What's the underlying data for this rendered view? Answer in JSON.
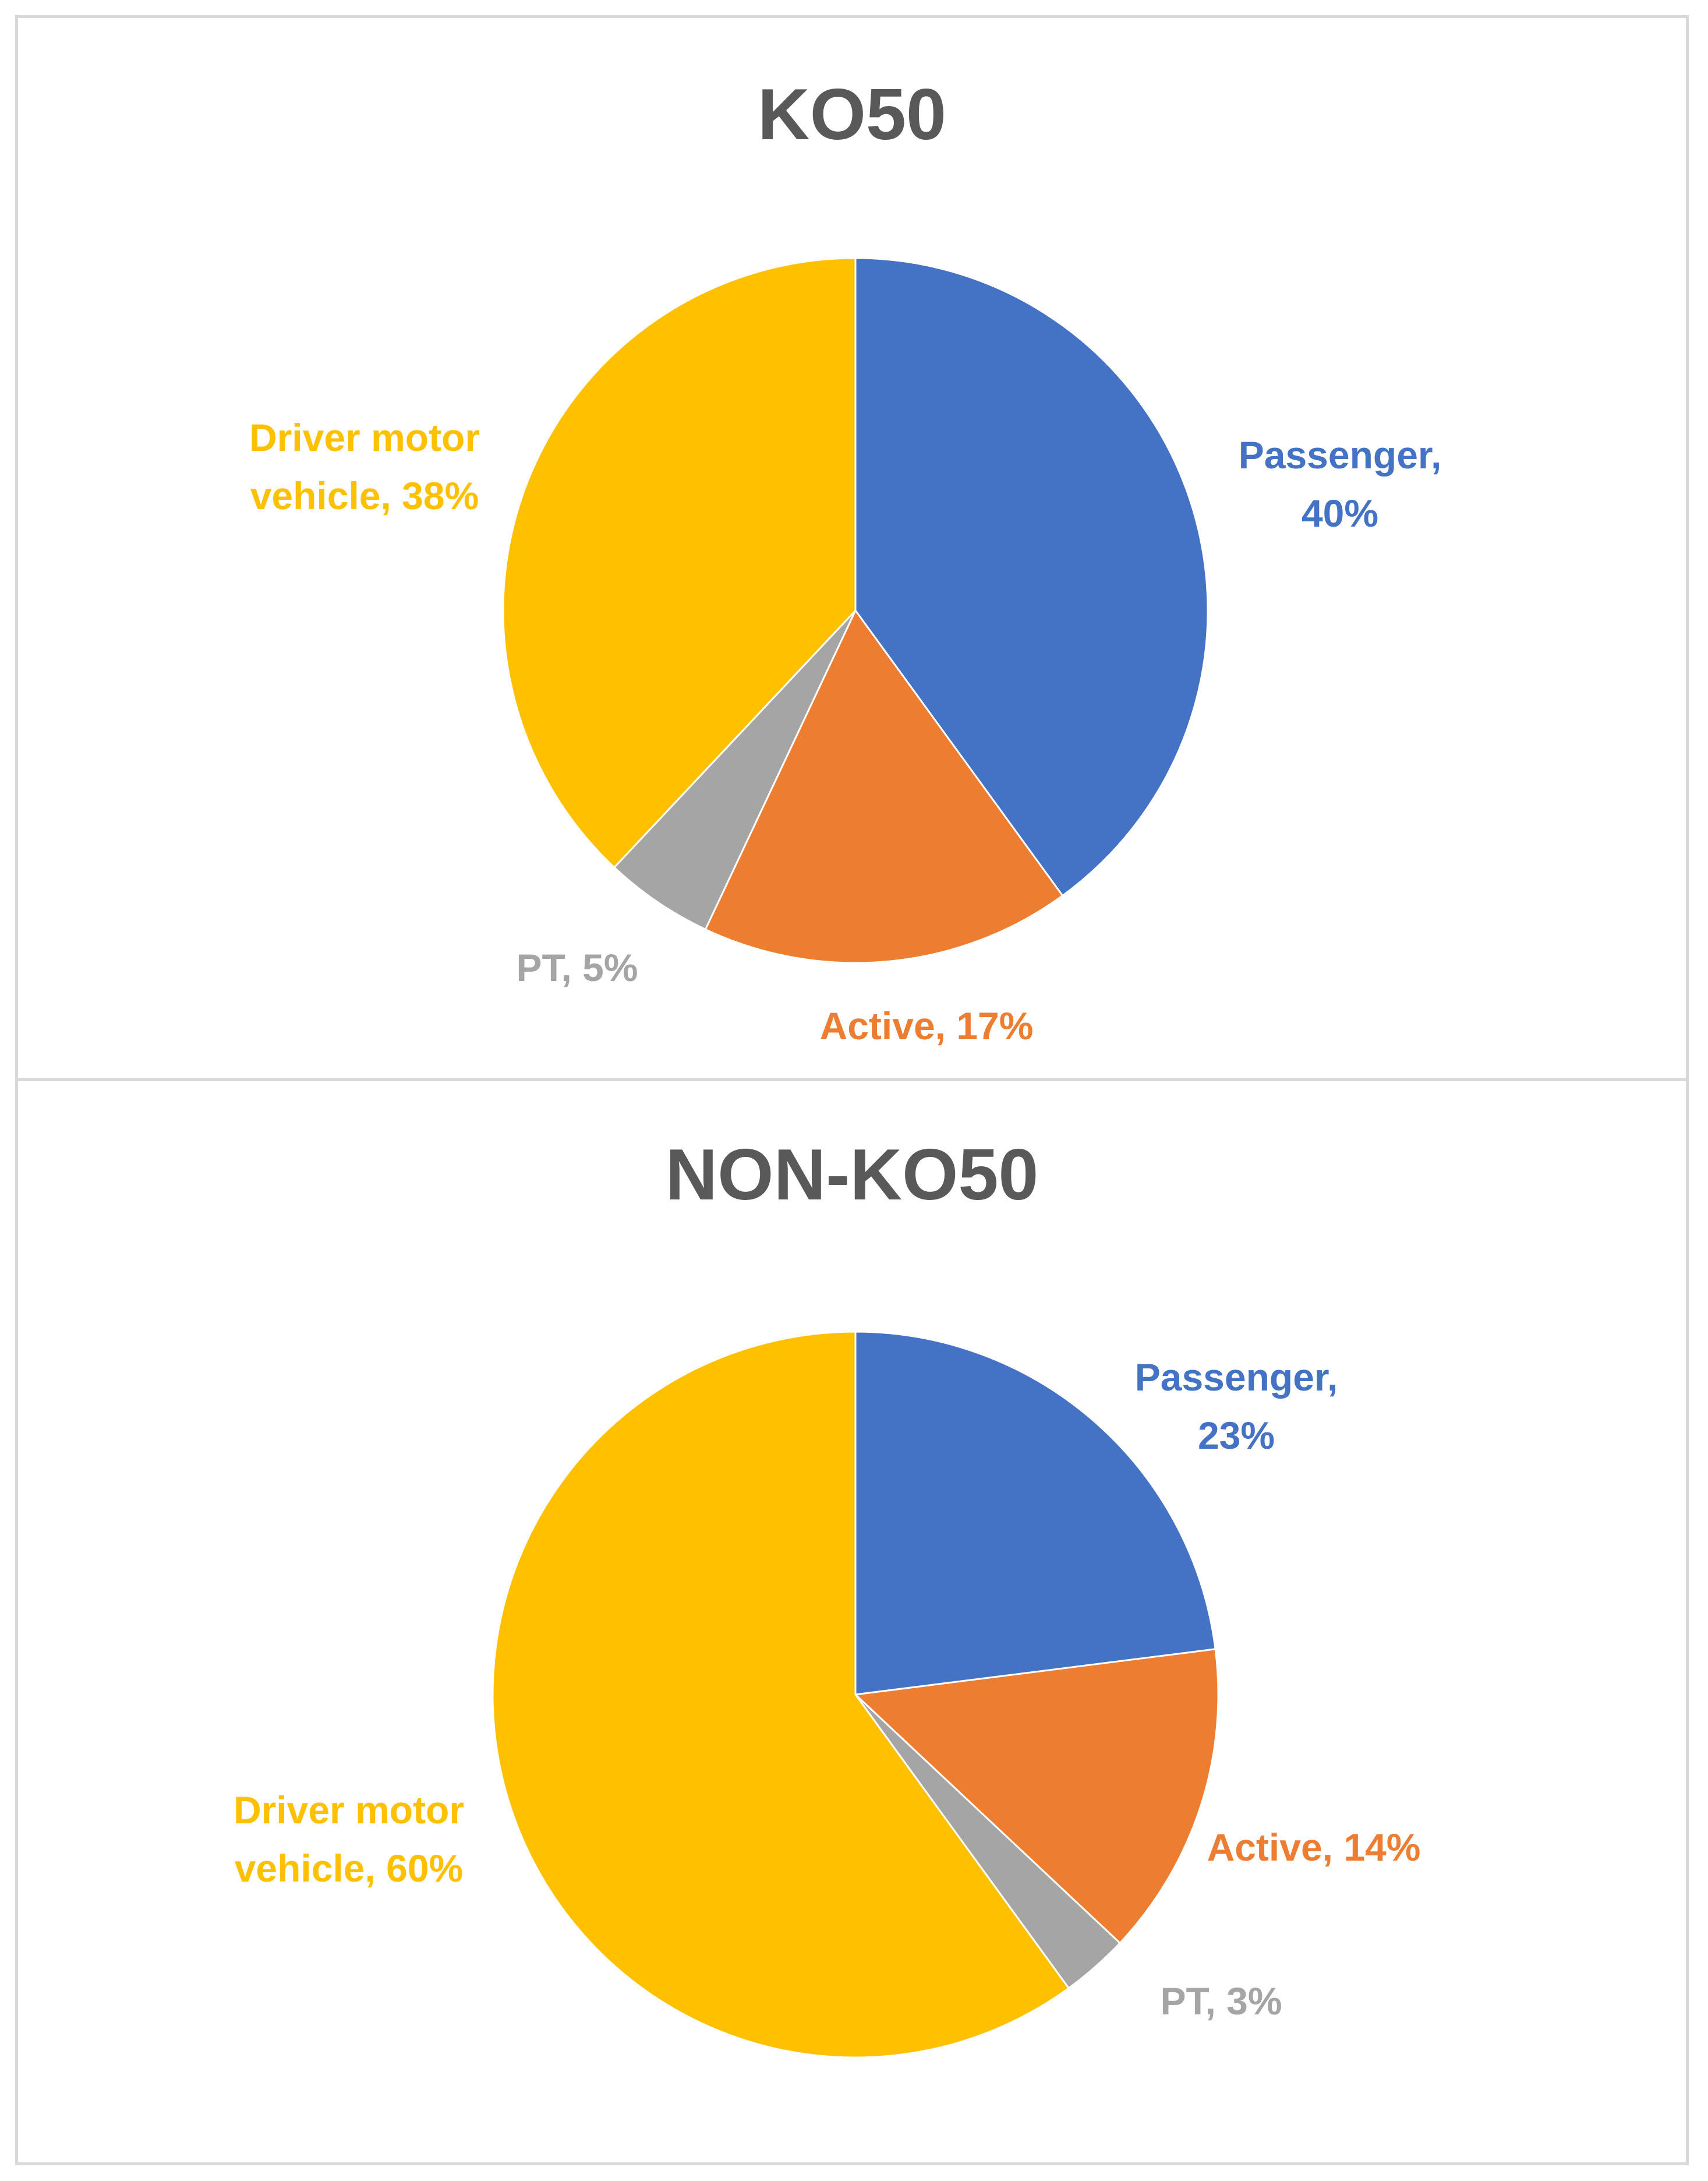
{
  "colors": {
    "Passenger": "#4472c4",
    "Active": "#ed7d31",
    "PT": "#a5a5a5",
    "Driver motor vehicle": "#ffc000",
    "title": "#595959",
    "border": "#d9d9d9"
  },
  "chart_data": [
    {
      "type": "pie",
      "title": "KO50",
      "categories": [
        "Passenger",
        "Active",
        "PT",
        "Driver motor vehicle"
      ],
      "values": [
        40,
        17,
        5,
        38
      ],
      "unit": "%",
      "slice_order": "clockwise from 12 o'clock",
      "data_labels": [
        {
          "category": "Passenger",
          "lines": [
            "Passenger,",
            "40%"
          ]
        },
        {
          "category": "Active",
          "lines": [
            "Active, 17%"
          ]
        },
        {
          "category": "PT",
          "lines": [
            "PT, 5%"
          ]
        },
        {
          "category": "Driver motor vehicle",
          "lines": [
            "Driver motor",
            "vehicle, 38%"
          ]
        }
      ],
      "legend": "none"
    },
    {
      "type": "pie",
      "title": "NON-KO50",
      "categories": [
        "Passenger",
        "Active",
        "PT",
        "Driver motor vehicle"
      ],
      "values": [
        23,
        14,
        3,
        60
      ],
      "unit": "%",
      "slice_order": "clockwise from 12 o'clock",
      "data_labels": [
        {
          "category": "Passenger",
          "lines": [
            "Passenger,",
            "23%"
          ]
        },
        {
          "category": "Active",
          "lines": [
            "Active, 14%"
          ]
        },
        {
          "category": "PT",
          "lines": [
            "PT, 3%"
          ]
        },
        {
          "category": "Driver motor vehicle",
          "lines": [
            "Driver motor",
            "vehicle, 60%"
          ]
        }
      ],
      "legend": "none"
    }
  ]
}
